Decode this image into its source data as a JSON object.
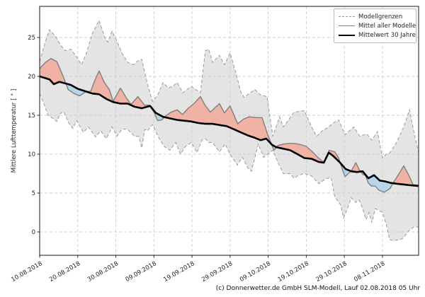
{
  "caption": "(c) Donnerwetter.de GmbH SLM-Modell, Lauf 02.08.2018 05 Uhr",
  "legend": {
    "items": [
      {
        "label": "Modellgrenzen",
        "style": "dashed-gray"
      },
      {
        "label": "Mittel aller Modelle",
        "style": "solid-gray"
      },
      {
        "label": "Mittelwert 30 Jahre",
        "style": "solid-black"
      }
    ]
  },
  "colors": {
    "band_fill": "rgba(202,202,202,0.5)",
    "band_edge": "#9a9a9a",
    "model_mean": "#7f7f7f",
    "mean30": "#000000",
    "warm_fill": "#f0b2a4",
    "cold_fill": "#b7d7e8",
    "grid": "#cfcfcf",
    "spine": "#2b2b2b",
    "tick_text": "#262626"
  },
  "chart_data": {
    "type": "line",
    "title": "",
    "xlabel": "",
    "ylabel": "Mittlere Lufttemperatur [ ° ]",
    "grid": true,
    "legend_position": "upper right",
    "xlim_days": [
      0,
      99.5
    ],
    "ylim": [
      -3,
      29
    ],
    "y_ticks": [
      0,
      5,
      10,
      15,
      20,
      25
    ],
    "x_tick_days": [
      0,
      10,
      20,
      30,
      40,
      50,
      60,
      70,
      80,
      90
    ],
    "x_tick_labels": [
      "10.08.2018",
      "20.08.2018",
      "30.08.2018",
      "09.09.2018",
      "19.09.2018",
      "29.09.2018",
      "09.10.2018",
      "19.10.2018",
      "29.10.2018",
      "08.11.2018"
    ],
    "series": [
      {
        "name": "Modellgrenzen (obere Grenze)",
        "role": "upper",
        "points": [
          [
            0,
            21.9
          ],
          [
            1.3,
            24.2
          ],
          [
            2.6,
            26.0
          ],
          [
            4.1,
            25.2
          ],
          [
            5.4,
            24.1
          ],
          [
            6.7,
            23.3
          ],
          [
            8.2,
            23.5
          ],
          [
            9.7,
            22.5
          ],
          [
            11,
            21.5
          ],
          [
            12.3,
            23.0
          ],
          [
            13.8,
            25.5
          ],
          [
            15.6,
            27.2
          ],
          [
            17.1,
            25.0
          ],
          [
            17.9,
            24.4
          ],
          [
            19,
            25.8
          ],
          [
            20.3,
            24.5
          ],
          [
            21.6,
            23.0
          ],
          [
            23.1,
            21.8
          ],
          [
            24.6,
            21.5
          ],
          [
            25.8,
            22.0
          ],
          [
            26.8,
            22.2
          ],
          [
            28.3,
            19.0
          ],
          [
            29.6,
            16.8
          ],
          [
            30.9,
            17.5
          ],
          [
            32.4,
            19.2
          ],
          [
            33.8,
            18.5
          ],
          [
            35.1,
            18.8
          ],
          [
            36.1,
            19.2
          ],
          [
            37.6,
            17.9
          ],
          [
            38.9,
            18.4
          ],
          [
            39.8,
            18.7
          ],
          [
            41.3,
            18.2
          ],
          [
            42.2,
            17.9
          ],
          [
            43.5,
            23.3
          ],
          [
            44.4,
            23.5
          ],
          [
            45.4,
            21.8
          ],
          [
            47.2,
            22.7
          ],
          [
            48.5,
            21.5
          ],
          [
            50,
            23.0
          ],
          [
            51.5,
            20.5
          ],
          [
            52.8,
            18.0
          ],
          [
            53.7,
            17.3
          ],
          [
            55,
            17.8
          ],
          [
            56.5,
            18.3
          ],
          [
            58,
            17.6
          ],
          [
            59.7,
            17.4
          ],
          [
            61.2,
            12.3
          ],
          [
            63,
            14.8
          ],
          [
            64,
            13.5
          ],
          [
            66.8,
            15.4
          ],
          [
            69.5,
            15.6
          ],
          [
            71.4,
            13.5
          ],
          [
            72.7,
            12.3
          ],
          [
            74.2,
            13.0
          ],
          [
            75.9,
            13.5
          ],
          [
            77,
            14.0
          ],
          [
            78.5,
            14.4
          ],
          [
            80.2,
            12.5
          ],
          [
            82.5,
            13.5
          ],
          [
            84,
            12.3
          ],
          [
            85.9,
            12.6
          ],
          [
            87.2,
            11.8
          ],
          [
            88.7,
            12.9
          ],
          [
            90,
            9.5
          ],
          [
            91,
            10.0
          ],
          [
            92,
            10.2
          ],
          [
            93.7,
            11.5
          ],
          [
            95.6,
            13.5
          ],
          [
            97.1,
            15.7
          ],
          [
            98.4,
            12.5
          ],
          [
            99.5,
            10.2
          ]
        ]
      },
      {
        "name": "Modellgrenzen (untere Grenze)",
        "role": "lower",
        "points": [
          [
            0,
            17.8
          ],
          [
            1.1,
            16.5
          ],
          [
            2.2,
            15.0
          ],
          [
            3.5,
            14.6
          ],
          [
            4.5,
            14.2
          ],
          [
            5.4,
            15.2
          ],
          [
            6.3,
            15.5
          ],
          [
            7.6,
            14.0
          ],
          [
            8.7,
            13.3
          ],
          [
            9.7,
            14.3
          ],
          [
            11.5,
            12.8
          ],
          [
            12.8,
            13.5
          ],
          [
            14.7,
            12.2
          ],
          [
            16,
            13.0
          ],
          [
            17.5,
            12.0
          ],
          [
            19,
            13.5
          ],
          [
            20.3,
            12.3
          ],
          [
            21.6,
            13.2
          ],
          [
            23.1,
            13.2
          ],
          [
            24.9,
            12.3
          ],
          [
            26,
            12.3
          ],
          [
            26.8,
            10.8
          ],
          [
            27.6,
            13.2
          ],
          [
            28.3,
            13.0
          ],
          [
            29.6,
            13.8
          ],
          [
            31.4,
            12.0
          ],
          [
            32.7,
            11.0
          ],
          [
            34.2,
            10.5
          ],
          [
            35.7,
            11.5
          ],
          [
            37,
            10.0
          ],
          [
            38.3,
            11.0
          ],
          [
            39.8,
            11.5
          ],
          [
            41.3,
            10.2
          ],
          [
            42.6,
            11.8
          ],
          [
            43.5,
            12.0
          ],
          [
            44.4,
            11.5
          ],
          [
            45.4,
            11.5
          ],
          [
            47.2,
            10.3
          ],
          [
            48.7,
            11.3
          ],
          [
            50,
            10.0
          ],
          [
            51.9,
            8.6
          ],
          [
            53.2,
            9.6
          ],
          [
            54.7,
            8.2
          ],
          [
            55.6,
            7.8
          ],
          [
            57.4,
            11.3
          ],
          [
            58.8,
            9.6
          ],
          [
            61.2,
            10.5
          ],
          [
            62.5,
            9.0
          ],
          [
            64,
            7.5
          ],
          [
            65.8,
            7.5
          ],
          [
            66.8,
            6.9
          ],
          [
            68,
            7.3
          ],
          [
            69.5,
            7.5
          ],
          [
            71.4,
            7.2
          ],
          [
            73.3,
            6.2
          ],
          [
            75,
            6.8
          ],
          [
            76.5,
            7.0
          ],
          [
            77.5,
            4.5
          ],
          [
            79,
            3.5
          ],
          [
            79.8,
            1.8
          ],
          [
            80.8,
            3.0
          ],
          [
            81.8,
            4.4
          ],
          [
            83,
            3.8
          ],
          [
            83.9,
            4.1
          ],
          [
            84.8,
            3.0
          ],
          [
            85.7,
            1.6
          ],
          [
            86.5,
            2.5
          ],
          [
            87.2,
            1.2
          ],
          [
            88.1,
            3.0
          ],
          [
            89,
            2.8
          ],
          [
            90,
            2.5
          ],
          [
            91,
            1.0
          ],
          [
            91.9,
            -1.0
          ],
          [
            93,
            -1.1
          ],
          [
            94.5,
            -1.0
          ],
          [
            95.4,
            -0.8
          ],
          [
            97,
            0.2
          ],
          [
            98.4,
            0.7
          ],
          [
            99.5,
            0.6
          ]
        ]
      },
      {
        "name": "Mittel aller Modelle",
        "role": "model_mean",
        "points": [
          [
            0,
            21.0
          ],
          [
            1.5,
            21.8
          ],
          [
            3,
            22.3
          ],
          [
            4.5,
            21.9
          ],
          [
            6,
            20.2
          ],
          [
            7.5,
            18.3
          ],
          [
            9,
            17.8
          ],
          [
            10.5,
            17.5
          ],
          [
            12,
            18.0
          ],
          [
            13.4,
            18.1
          ],
          [
            14.5,
            19.5
          ],
          [
            15.6,
            20.7
          ],
          [
            17,
            19.2
          ],
          [
            18.3,
            18.3
          ],
          [
            19.3,
            16.8
          ],
          [
            21.2,
            18.5
          ],
          [
            22.8,
            17.2
          ],
          [
            24,
            16.4
          ],
          [
            25.8,
            17.4
          ],
          [
            27.5,
            16.3
          ],
          [
            28.8,
            16.3
          ],
          [
            30,
            15.4
          ],
          [
            31,
            14.3
          ],
          [
            32,
            14.4
          ],
          [
            33.3,
            15.0
          ],
          [
            34.5,
            15.4
          ],
          [
            36.1,
            15.7
          ],
          [
            37.5,
            15.1
          ],
          [
            39,
            15.9
          ],
          [
            40.5,
            16.5
          ],
          [
            42.2,
            17.4
          ],
          [
            43.4,
            16.3
          ],
          [
            44.8,
            15.4
          ],
          [
            47.2,
            16.5
          ],
          [
            48.5,
            15.3
          ],
          [
            50,
            16.2
          ],
          [
            52,
            13.9
          ],
          [
            53.5,
            14.5
          ],
          [
            55,
            14.8
          ],
          [
            57,
            14.7
          ],
          [
            58.4,
            14.7
          ],
          [
            59.8,
            12.6
          ],
          [
            61.5,
            10.5
          ],
          [
            62.5,
            11.1
          ],
          [
            64,
            11.3
          ],
          [
            66,
            11.4
          ],
          [
            68,
            11.3
          ],
          [
            70,
            11.0
          ],
          [
            71.4,
            10.4
          ],
          [
            73,
            9.6
          ],
          [
            74.7,
            8.9
          ],
          [
            76,
            10.5
          ],
          [
            77.5,
            10.3
          ],
          [
            78.5,
            9.5
          ],
          [
            79.5,
            8.0
          ],
          [
            80.2,
            7.1
          ],
          [
            81,
            7.5
          ],
          [
            81.8,
            7.8
          ],
          [
            83,
            8.9
          ],
          [
            84,
            7.9
          ],
          [
            84.8,
            7.4
          ],
          [
            85.5,
            7.3
          ],
          [
            86.3,
            6.3
          ],
          [
            87.1,
            5.9
          ],
          [
            88.1,
            5.9
          ],
          [
            89,
            5.4
          ],
          [
            90.5,
            5.1
          ],
          [
            92,
            5.6
          ],
          [
            92.8,
            6.3
          ],
          [
            94,
            7.2
          ],
          [
            95.6,
            8.5
          ],
          [
            97,
            7.2
          ],
          [
            98,
            6.1
          ],
          [
            99.5,
            6.0
          ]
        ]
      },
      {
        "name": "Mittelwert 30 Jahre",
        "role": "mean30",
        "points": [
          [
            0,
            20.0
          ],
          [
            2.6,
            19.6
          ],
          [
            3.7,
            19.0
          ],
          [
            5.2,
            19.3
          ],
          [
            6.7,
            19.1
          ],
          [
            8.2,
            18.9
          ],
          [
            10,
            18.4
          ],
          [
            11.9,
            18.1
          ],
          [
            13.8,
            17.8
          ],
          [
            15.6,
            17.7
          ],
          [
            17.5,
            17.1
          ],
          [
            19.3,
            16.7
          ],
          [
            21.2,
            16.5
          ],
          [
            23.1,
            16.5
          ],
          [
            24.9,
            16.1
          ],
          [
            26.8,
            15.9
          ],
          [
            29,
            16.2
          ],
          [
            30.5,
            15.3
          ],
          [
            32.4,
            14.8
          ],
          [
            34.2,
            14.6
          ],
          [
            36.1,
            14.4
          ],
          [
            37.9,
            14.3
          ],
          [
            39.8,
            14.2
          ],
          [
            41.7,
            14.0
          ],
          [
            43.5,
            13.9
          ],
          [
            45.4,
            13.9
          ],
          [
            47.8,
            13.7
          ],
          [
            49.1,
            13.6
          ],
          [
            51,
            13.2
          ],
          [
            52.8,
            12.8
          ],
          [
            54.7,
            12.4
          ],
          [
            56.5,
            12.1
          ],
          [
            58,
            11.8
          ],
          [
            59.5,
            12.0
          ],
          [
            61,
            11.2
          ],
          [
            62.1,
            10.9
          ],
          [
            64,
            10.7
          ],
          [
            65.8,
            10.5
          ],
          [
            67.7,
            10.0
          ],
          [
            69.5,
            9.5
          ],
          [
            71.4,
            9.4
          ],
          [
            73.3,
            9.0
          ],
          [
            74.6,
            8.9
          ],
          [
            75.9,
            10.2
          ],
          [
            77,
            9.8
          ],
          [
            78.9,
            8.9
          ],
          [
            80.3,
            8.1
          ],
          [
            81.8,
            7.8
          ],
          [
            83.3,
            7.7
          ],
          [
            84.8,
            7.8
          ],
          [
            86.3,
            6.9
          ],
          [
            87.8,
            7.3
          ],
          [
            89.3,
            6.6
          ],
          [
            90.7,
            6.5
          ],
          [
            92.2,
            6.3
          ],
          [
            93.7,
            6.2
          ],
          [
            95.6,
            6.1
          ],
          [
            97.4,
            6.0
          ],
          [
            99.5,
            5.9
          ]
        ]
      }
    ]
  }
}
